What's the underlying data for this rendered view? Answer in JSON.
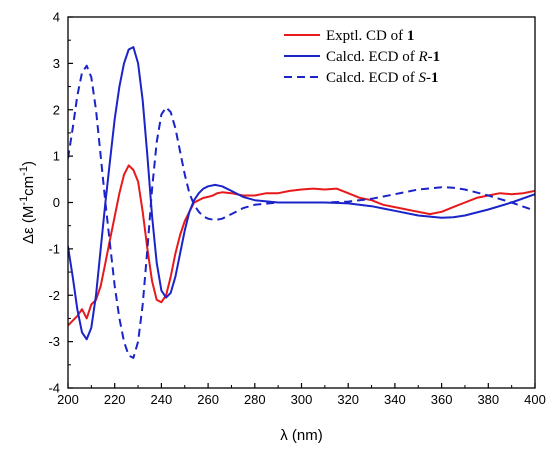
{
  "chart_data": {
    "type": "line",
    "xlabel": "λ (nm)",
    "ylabel": {
      "prefix": "Δε (M",
      "sup1": "-1",
      "mid": "cm",
      "sup2": "-1",
      "suffix": ")"
    },
    "xlim": [
      200,
      400
    ],
    "ylim": [
      -4,
      4
    ],
    "x_ticks": [
      200,
      220,
      240,
      260,
      280,
      300,
      320,
      340,
      360,
      380,
      400
    ],
    "y_ticks": [
      -4,
      -3,
      -2,
      -1,
      0,
      1,
      2,
      3,
      4
    ],
    "grid": false,
    "legend_position": "top-right",
    "series": [
      {
        "legend_parts": [
          {
            "t": "Exptl. CD of "
          },
          {
            "t": "1",
            "bold": true
          }
        ],
        "color": "#e8191a",
        "dash": "solid",
        "points": [
          [
            200,
            -2.65
          ],
          [
            204,
            -2.45
          ],
          [
            206,
            -2.3
          ],
          [
            208,
            -2.5
          ],
          [
            210,
            -2.2
          ],
          [
            212,
            -2.1
          ],
          [
            214,
            -1.8
          ],
          [
            216,
            -1.3
          ],
          [
            218,
            -0.8
          ],
          [
            220,
            -0.3
          ],
          [
            222,
            0.2
          ],
          [
            224,
            0.6
          ],
          [
            226,
            0.8
          ],
          [
            228,
            0.7
          ],
          [
            230,
            0.45
          ],
          [
            232,
            -0.2
          ],
          [
            234,
            -1.0
          ],
          [
            236,
            -1.7
          ],
          [
            238,
            -2.1
          ],
          [
            240,
            -2.15
          ],
          [
            242,
            -2.0
          ],
          [
            244,
            -1.6
          ],
          [
            246,
            -1.1
          ],
          [
            248,
            -0.7
          ],
          [
            250,
            -0.4
          ],
          [
            252,
            -0.2
          ],
          [
            254,
            0.0
          ],
          [
            256,
            0.05
          ],
          [
            258,
            0.1
          ],
          [
            260,
            0.12
          ],
          [
            262,
            0.15
          ],
          [
            264,
            0.2
          ],
          [
            266,
            0.22
          ],
          [
            270,
            0.2
          ],
          [
            275,
            0.15
          ],
          [
            280,
            0.15
          ],
          [
            285,
            0.2
          ],
          [
            290,
            0.2
          ],
          [
            295,
            0.25
          ],
          [
            300,
            0.28
          ],
          [
            305,
            0.3
          ],
          [
            310,
            0.28
          ],
          [
            315,
            0.3
          ],
          [
            320,
            0.2
          ],
          [
            325,
            0.1
          ],
          [
            330,
            0.05
          ],
          [
            335,
            -0.05
          ],
          [
            340,
            -0.1
          ],
          [
            345,
            -0.15
          ],
          [
            350,
            -0.2
          ],
          [
            355,
            -0.25
          ],
          [
            360,
            -0.2
          ],
          [
            365,
            -0.1
          ],
          [
            370,
            0.0
          ],
          [
            375,
            0.1
          ],
          [
            380,
            0.15
          ],
          [
            385,
            0.2
          ],
          [
            390,
            0.18
          ],
          [
            395,
            0.2
          ],
          [
            400,
            0.25
          ]
        ]
      },
      {
        "legend_parts": [
          {
            "t": "Calcd. ECD of "
          },
          {
            "t": "R",
            "italic": true
          },
          {
            "t": "-"
          },
          {
            "t": "1",
            "bold": true
          }
        ],
        "color": "#1a24c8",
        "dash": "solid",
        "points": [
          [
            200,
            -0.95
          ],
          [
            202,
            -1.6
          ],
          [
            204,
            -2.3
          ],
          [
            206,
            -2.8
          ],
          [
            208,
            -2.95
          ],
          [
            210,
            -2.7
          ],
          [
            212,
            -2.0
          ],
          [
            214,
            -1.0
          ],
          [
            216,
            0.0
          ],
          [
            218,
            0.9
          ],
          [
            220,
            1.8
          ],
          [
            222,
            2.5
          ],
          [
            224,
            3.0
          ],
          [
            226,
            3.3
          ],
          [
            228,
            3.35
          ],
          [
            230,
            3.0
          ],
          [
            232,
            2.2
          ],
          [
            234,
            1.0
          ],
          [
            236,
            -0.3
          ],
          [
            238,
            -1.3
          ],
          [
            240,
            -1.9
          ],
          [
            242,
            -2.05
          ],
          [
            244,
            -1.95
          ],
          [
            246,
            -1.6
          ],
          [
            248,
            -1.1
          ],
          [
            250,
            -0.6
          ],
          [
            252,
            -0.2
          ],
          [
            254,
            0.05
          ],
          [
            256,
            0.2
          ],
          [
            258,
            0.3
          ],
          [
            260,
            0.35
          ],
          [
            263,
            0.38
          ],
          [
            266,
            0.35
          ],
          [
            270,
            0.25
          ],
          [
            275,
            0.12
          ],
          [
            280,
            0.05
          ],
          [
            290,
            0.0
          ],
          [
            300,
            0.0
          ],
          [
            310,
            0.0
          ],
          [
            320,
            -0.02
          ],
          [
            330,
            -0.08
          ],
          [
            340,
            -0.18
          ],
          [
            350,
            -0.28
          ],
          [
            360,
            -0.33
          ],
          [
            365,
            -0.32
          ],
          [
            370,
            -0.28
          ],
          [
            380,
            -0.15
          ],
          [
            390,
            0.0
          ],
          [
            400,
            0.18
          ]
        ]
      },
      {
        "legend_parts": [
          {
            "t": "Calcd. ECD of "
          },
          {
            "t": "S",
            "italic": true
          },
          {
            "t": "-"
          },
          {
            "t": "1",
            "bold": true
          }
        ],
        "color": "#1a24c8",
        "dash": "dashed",
        "points": [
          [
            200,
            0.95
          ],
          [
            202,
            1.6
          ],
          [
            204,
            2.3
          ],
          [
            206,
            2.8
          ],
          [
            208,
            2.95
          ],
          [
            210,
            2.7
          ],
          [
            212,
            2.0
          ],
          [
            214,
            1.0
          ],
          [
            216,
            0.0
          ],
          [
            218,
            -0.9
          ],
          [
            220,
            -1.8
          ],
          [
            222,
            -2.5
          ],
          [
            224,
            -3.0
          ],
          [
            226,
            -3.3
          ],
          [
            228,
            -3.35
          ],
          [
            230,
            -3.0
          ],
          [
            232,
            -2.2
          ],
          [
            234,
            -1.0
          ],
          [
            236,
            0.3
          ],
          [
            238,
            1.3
          ],
          [
            240,
            1.9
          ],
          [
            242,
            2.05
          ],
          [
            244,
            1.95
          ],
          [
            246,
            1.6
          ],
          [
            248,
            1.1
          ],
          [
            250,
            0.6
          ],
          [
            252,
            0.2
          ],
          [
            254,
            -0.05
          ],
          [
            256,
            -0.2
          ],
          [
            258,
            -0.3
          ],
          [
            260,
            -0.35
          ],
          [
            263,
            -0.38
          ],
          [
            266,
            -0.35
          ],
          [
            270,
            -0.25
          ],
          [
            275,
            -0.12
          ],
          [
            280,
            -0.05
          ],
          [
            290,
            0.0
          ],
          [
            300,
            0.0
          ],
          [
            310,
            0.0
          ],
          [
            320,
            0.02
          ],
          [
            330,
            0.08
          ],
          [
            340,
            0.18
          ],
          [
            350,
            0.28
          ],
          [
            360,
            0.33
          ],
          [
            365,
            0.32
          ],
          [
            370,
            0.28
          ],
          [
            380,
            0.15
          ],
          [
            390,
            0.0
          ],
          [
            400,
            -0.18
          ]
        ]
      }
    ]
  }
}
